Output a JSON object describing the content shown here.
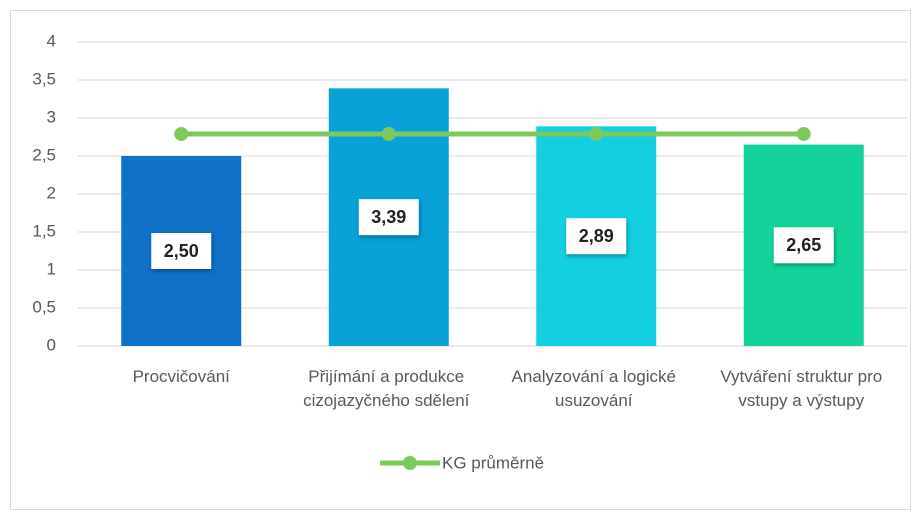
{
  "chart_data": {
    "type": "bar",
    "categories": [
      "Procvičování",
      "Přijímání a produkce cizojazyčného sdělení",
      "Analyzování a logické usuzování",
      "Vytváření struktur pro vstupy a výstupy"
    ],
    "values": [
      2.5,
      3.39,
      2.89,
      2.65
    ],
    "value_labels": [
      "2,50",
      "3,39",
      "2,89",
      "2,65"
    ],
    "colors": [
      "#1170c8",
      "#0aa0d8",
      "#14cfe0",
      "#13d39a"
    ],
    "series": [
      {
        "name": "KG průměrně",
        "type": "line",
        "color": "#7dc95e",
        "values": [
          2.79,
          2.79,
          2.79,
          2.79
        ]
      }
    ],
    "ylim": [
      0,
      4
    ],
    "yticks": [
      0,
      {
        "value": 0.5,
        "label": "0,5"
      },
      1,
      {
        "value": 1.5,
        "label": "1,5"
      },
      2,
      {
        "value": 2.5,
        "label": "2,5"
      },
      3,
      {
        "value": 3.5,
        "label": "3,5"
      },
      4
    ],
    "grid": true,
    "legend": "bottom"
  }
}
